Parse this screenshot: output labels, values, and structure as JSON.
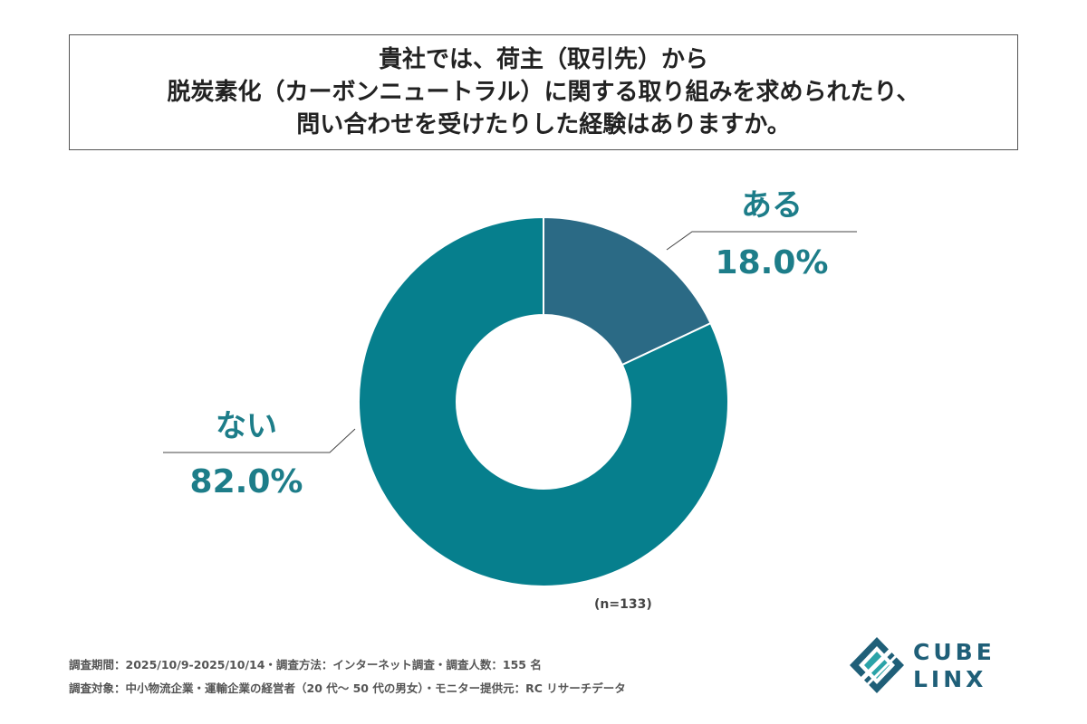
{
  "title_lines": [
    "貴社では、荷主（取引先）から",
    "脱炭素化（カーボンニュートラル）に関する取り組みを求められたり、",
    "問い合わせを受けたりした経験はありますか。"
  ],
  "chart_data": {
    "type": "pie",
    "donut": true,
    "categories": [
      "ある",
      "ない"
    ],
    "values": [
      18.0,
      82.0
    ],
    "value_labels": [
      "18.0%",
      "82.0%"
    ],
    "colors": [
      "#2b6a85",
      "#067f8d"
    ],
    "label_color": "#1d7d89",
    "title": "",
    "sample_size": "(n=133)"
  },
  "notes": [
    "調査期間：2025/10/9-2025/10/14・調査方法：インターネット調査・調査人数：155 名",
    "調査対象：中小物流企業・運輸企業の経営者（20 代～ 50 代の男女）・モニター提供元：RC リサーチデータ"
  ],
  "logo": {
    "top": "CUBE",
    "bottom": "LINX",
    "color": "#1f5f78"
  }
}
